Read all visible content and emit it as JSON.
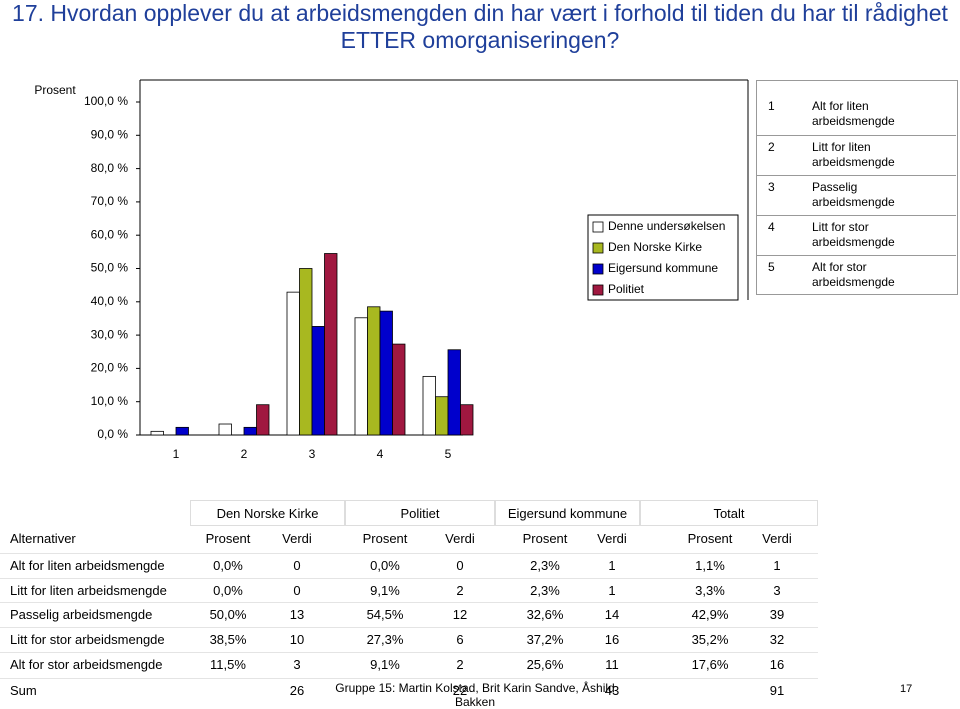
{
  "title": "17. Hvordan opplever du at arbeidsmengden din har vært i forhold til tiden du har til rådighet ETTER omorganiseringen?",
  "chart_data": {
    "type": "bar",
    "y_label": "Prosent",
    "categories": [
      "1",
      "2",
      "3",
      "4",
      "5"
    ],
    "series": [
      {
        "name": "Denne undersøkelsen",
        "color": "#ffffff",
        "values": [
          1.1,
          3.3,
          42.9,
          35.2,
          17.6
        ]
      },
      {
        "name": "Den Norske Kirke",
        "color": "#a8b820",
        "values": [
          0,
          0,
          50,
          38.5,
          11.5
        ]
      },
      {
        "name": "Eigersund kommune",
        "color": "#0000cc",
        "values": [
          2.3,
          2.3,
          32.6,
          37.2,
          25.6
        ]
      },
      {
        "name": "Politiet",
        "color": "#a01840",
        "values": [
          0,
          9.1,
          54.5,
          27.3,
          9.1
        ]
      }
    ],
    "ylim": [
      0,
      100
    ],
    "yticks": [
      {
        "value": 0,
        "label": "0,0 %"
      },
      {
        "value": 10,
        "label": "10,0 %"
      },
      {
        "value": 20,
        "label": "20,0 %"
      },
      {
        "value": 30,
        "label": "30,0 %"
      },
      {
        "value": 40,
        "label": "40,0 %"
      },
      {
        "value": 50,
        "label": "50,0 %"
      },
      {
        "value": 60,
        "label": "60,0 %"
      },
      {
        "value": 70,
        "label": "70,0 %"
      },
      {
        "value": 80,
        "label": "80,0 %"
      },
      {
        "value": 90,
        "label": "90,0 %"
      },
      {
        "value": 100,
        "label": "100,0 %"
      }
    ],
    "grid": false
  },
  "category_legend": [
    {
      "number": "1",
      "label": "Alt for liten arbeidsmengde"
    },
    {
      "number": "2",
      "label": "Litt for liten arbeidsmengde"
    },
    {
      "number": "3",
      "label": "Passelig arbeidsmengde"
    },
    {
      "number": "4",
      "label": "Litt for stor arbeidsmengde"
    },
    {
      "number": "5",
      "label": "Alt for stor arbeidsmengde"
    }
  ],
  "table": {
    "groups": [
      "Den Norske Kirke",
      "Politiet",
      "Eigersund kommune",
      "Totalt"
    ],
    "columns": [
      "Alternativer",
      "Prosent",
      "Verdi",
      "Prosent",
      "Verdi",
      "Prosent",
      "Verdi",
      "Prosent",
      "Verdi"
    ],
    "rows": [
      [
        "Alt for liten arbeidsmengde",
        "0,0%",
        "0",
        "0,0%",
        "0",
        "2,3%",
        "1",
        "1,1%",
        "1"
      ],
      [
        "Litt for liten arbeidsmengde",
        "0,0%",
        "0",
        "9,1%",
        "2",
        "2,3%",
        "1",
        "3,3%",
        "3"
      ],
      [
        "Passelig arbeidsmengde",
        "50,0%",
        "13",
        "54,5%",
        "12",
        "32,6%",
        "14",
        "42,9%",
        "39"
      ],
      [
        "Litt for stor arbeidsmengde",
        "38,5%",
        "10",
        "27,3%",
        "6",
        "37,2%",
        "16",
        "35,2%",
        "32"
      ],
      [
        "Alt for stor arbeidsmengde",
        "11,5%",
        "3",
        "9,1%",
        "2",
        "25,6%",
        "11",
        "17,6%",
        "16"
      ],
      [
        "Sum",
        null,
        "26",
        null,
        "22",
        null,
        "43",
        null,
        "91"
      ]
    ]
  },
  "footer": {
    "credit": "Gruppe 15: Martin Kolstad, Brit Karin Sandve, Åshild Bakken",
    "page": "17"
  }
}
